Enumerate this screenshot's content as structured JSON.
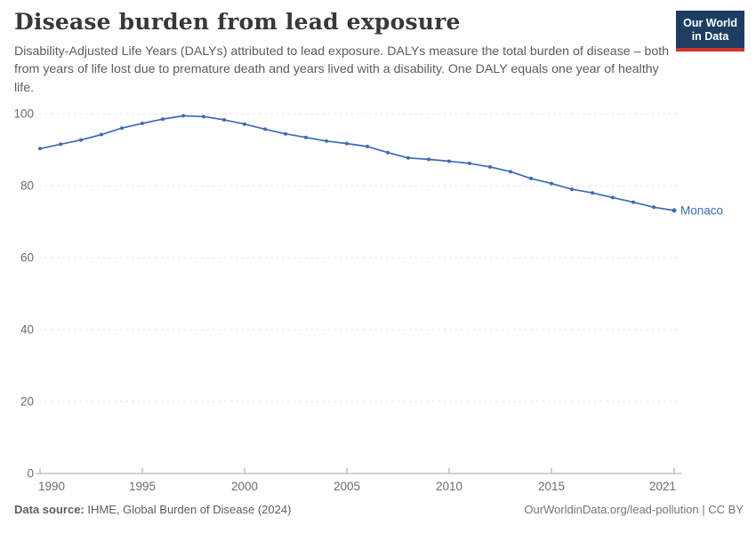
{
  "header": {
    "title": "Disease burden from lead exposure",
    "subtitle": "Disability-Adjusted Life Years (DALYs) attributed to lead exposure. DALYs measure the total burden of disease – both from years of life lost due to premature death and years lived with a disability. One DALY equals one year of healthy life.",
    "logo": {
      "line1": "Our World",
      "line2": "in Data",
      "bg_color": "#1d3d63",
      "accent_color": "#d0342c"
    }
  },
  "chart_data": {
    "type": "line",
    "title": "Disease burden from lead exposure",
    "xlabel": "",
    "ylabel": "",
    "xlim": [
      1990,
      2021
    ],
    "ylim": [
      0,
      100
    ],
    "x_ticks": [
      1990,
      1995,
      2000,
      2005,
      2010,
      2015,
      2021
    ],
    "y_ticks": [
      0,
      20,
      40,
      60,
      80,
      100
    ],
    "grid": "horizontal-dashed",
    "legend_position": "end-of-line-label",
    "series": [
      {
        "name": "Monaco",
        "color": "#3d6bb1",
        "x": [
          1990,
          1991,
          1992,
          1993,
          1994,
          1995,
          1996,
          1997,
          1998,
          1999,
          2000,
          2001,
          2002,
          2003,
          2004,
          2005,
          2006,
          2007,
          2008,
          2009,
          2010,
          2011,
          2012,
          2013,
          2014,
          2015,
          2016,
          2017,
          2018,
          2019,
          2020,
          2021
        ],
        "values": [
          90.3,
          91.5,
          92.7,
          94.2,
          96.0,
          97.3,
          98.5,
          99.4,
          99.2,
          98.3,
          97.1,
          95.7,
          94.4,
          93.4,
          92.4,
          91.7,
          90.9,
          89.2,
          87.7,
          87.3,
          86.8,
          86.2,
          85.2,
          83.9,
          82.0,
          80.6,
          79.0,
          78.0,
          76.7,
          75.4,
          74.0,
          73.1
        ]
      }
    ]
  },
  "footer": {
    "source_label": "Data source:",
    "source_text": " IHME, Global Burden of Disease (2024)",
    "credit": "OurWorldinData.org/lead-pollution | CC BY"
  }
}
